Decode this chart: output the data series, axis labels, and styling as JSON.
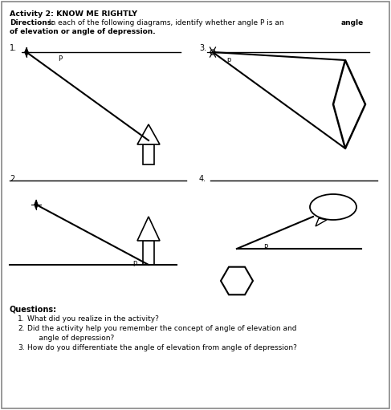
{
  "title": "Activity 2: KNOW ME RIGHTLY",
  "directions_normal": "In each of the following diagrams, identify whether angle P is an ",
  "directions_bold_end": "angle",
  "directions_line2": "of elevation or angle of depression.",
  "bg_color": "#ffffff",
  "border_color": "#999999",
  "questions_header": "Questions:",
  "questions": [
    "What did you realize in the activity?",
    "Did the activity help you remember the concept of angle of elevation and\n     angle of depression?",
    "How do you differentiate the angle of elevation from angle of depression?"
  ],
  "diagram_labels": [
    "1.",
    "2.",
    "3.",
    "4."
  ]
}
